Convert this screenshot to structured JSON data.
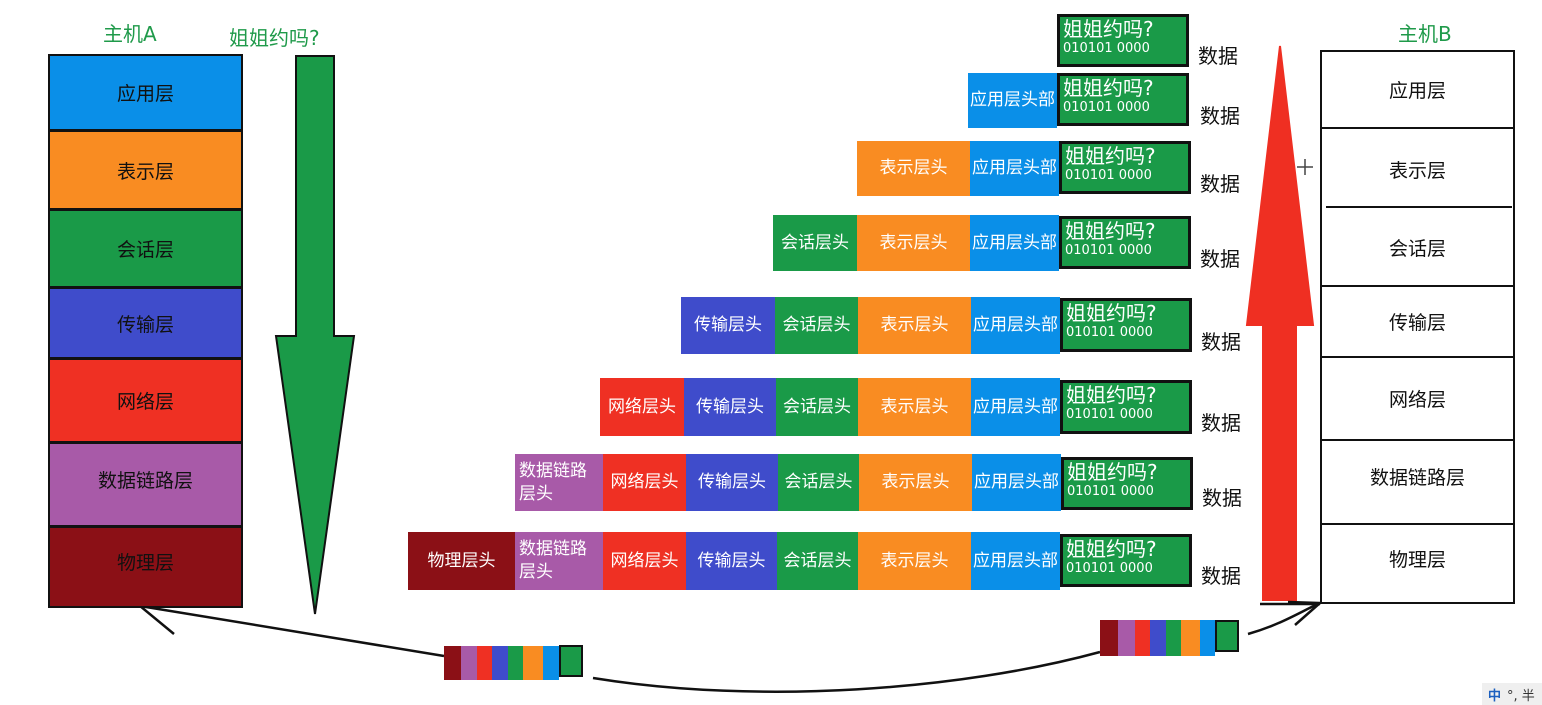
{
  "host_a": {
    "title": "主机A"
  },
  "host_b": {
    "title": "主机B"
  },
  "message": "姐姐约吗?",
  "bits": "010101 0000",
  "data_label": "数据",
  "layers": [
    "应用层",
    "表示层",
    "会话层",
    "传输层",
    "网络层",
    "数据链路层",
    "物理层"
  ],
  "headers": [
    "应用层头部",
    "表示层头",
    "会话层头",
    "传输层头",
    "网络层头",
    "数据链路层头",
    "物理层头"
  ],
  "colors": {
    "app": "#0a8fe8",
    "present": "#f98c22",
    "session": "#1a9a48",
    "transport": "#3f4ccb",
    "network": "#ef3023",
    "datalink": "#a85aa8",
    "physical": "#8b1016",
    "arrow_down": "#1a9a48",
    "arrow_up": "#ef2f22"
  },
  "icons": [
    "arrow-down-icon",
    "arrow-up-icon",
    "curved-transmission-arrow-icon",
    "cursor-crosshair-icon"
  ],
  "tray": {
    "ime": "中",
    "text": "°, 半"
  }
}
